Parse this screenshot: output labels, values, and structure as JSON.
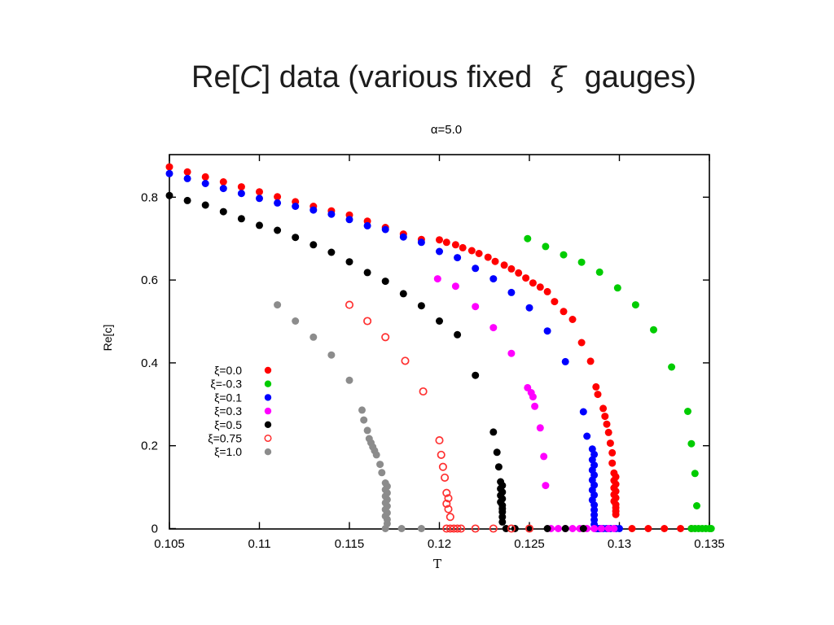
{
  "slide": {
    "title_pre": "Re[",
    "title_var": "C",
    "title_mid": "] data (various fixed ",
    "title_xi": "ξ",
    "title_post": " gauges)"
  },
  "chart_data": {
    "type": "scatter",
    "title": "α=5.0",
    "xlabel": "T",
    "ylabel": "Re[c]",
    "xlim": [
      0.105,
      0.135
    ],
    "ylim": [
      0,
      0.9
    ],
    "grid": false,
    "legend_position": "left-middle",
    "x_tick_values": [
      0.105,
      0.11,
      0.115,
      0.12,
      0.125,
      0.13,
      0.135
    ],
    "x_tick_labels": [
      "0.105",
      "0.11",
      "0.115",
      "0.12",
      "0.125",
      "0.13",
      "0.135"
    ],
    "y_tick_values": [
      0,
      0.2,
      0.4,
      0.6,
      0.8
    ],
    "y_tick_labels": [
      "0",
      "0.2",
      "0.4",
      "0.6",
      "0.8"
    ],
    "series": [
      {
        "name": "ξ=0.0",
        "color": "#ff0000",
        "marker": "filled-circle",
        "points": [
          [
            0.105,
            0.873
          ],
          [
            0.106,
            0.861
          ],
          [
            0.107,
            0.849
          ],
          [
            0.108,
            0.837
          ],
          [
            0.109,
            0.825
          ],
          [
            0.11,
            0.813
          ],
          [
            0.111,
            0.801
          ],
          [
            0.112,
            0.789
          ],
          [
            0.113,
            0.778
          ],
          [
            0.114,
            0.767
          ],
          [
            0.115,
            0.757
          ],
          [
            0.116,
            0.742
          ],
          [
            0.117,
            0.727
          ],
          [
            0.118,
            0.711
          ],
          [
            0.119,
            0.698
          ],
          [
            0.12,
            0.697
          ],
          [
            0.1204,
            0.691
          ],
          [
            0.1209,
            0.685
          ],
          [
            0.1213,
            0.678
          ],
          [
            0.1218,
            0.671
          ],
          [
            0.1222,
            0.664
          ],
          [
            0.1227,
            0.655
          ],
          [
            0.1231,
            0.645
          ],
          [
            0.1236,
            0.636
          ],
          [
            0.124,
            0.627
          ],
          [
            0.1244,
            0.617
          ],
          [
            0.1248,
            0.605
          ],
          [
            0.1252,
            0.593
          ],
          [
            0.1256,
            0.583
          ],
          [
            0.126,
            0.572
          ],
          [
            0.1264,
            0.548
          ],
          [
            0.1269,
            0.524
          ],
          [
            0.1274,
            0.505
          ],
          [
            0.1279,
            0.449
          ],
          [
            0.1284,
            0.404
          ],
          [
            0.1287,
            0.342
          ],
          [
            0.1288,
            0.324
          ],
          [
            0.1291,
            0.29
          ],
          [
            0.1292,
            0.271
          ],
          [
            0.1293,
            0.252
          ],
          [
            0.1294,
            0.232
          ],
          [
            0.1295,
            0.206
          ],
          [
            0.1296,
            0.183
          ],
          [
            0.1296,
            0.158
          ],
          [
            0.1297,
            0.134
          ],
          [
            0.1298,
            0.125
          ],
          [
            0.1297,
            0.116
          ],
          [
            0.1298,
            0.107
          ],
          [
            0.1297,
            0.098
          ],
          [
            0.1298,
            0.09
          ],
          [
            0.1297,
            0.082
          ],
          [
            0.1298,
            0.074
          ],
          [
            0.1297,
            0.066
          ],
          [
            0.1298,
            0.058
          ],
          [
            0.1298,
            0.05
          ],
          [
            0.1298,
            0.042
          ],
          [
            0.1298,
            0.034
          ],
          [
            0.1307,
            0
          ],
          [
            0.1316,
            0
          ],
          [
            0.1325,
            0
          ],
          [
            0.1334,
            0
          ],
          [
            0.134,
            0
          ]
        ]
      },
      {
        "name": "ξ=-0.3",
        "color": "#00cc00",
        "marker": "filled-circle",
        "points": [
          [
            0.1249,
            0.7
          ],
          [
            0.1259,
            0.681
          ],
          [
            0.1269,
            0.661
          ],
          [
            0.1279,
            0.643
          ],
          [
            0.1289,
            0.619
          ],
          [
            0.1299,
            0.581
          ],
          [
            0.1309,
            0.54
          ],
          [
            0.1319,
            0.48
          ],
          [
            0.1329,
            0.39
          ],
          [
            0.1338,
            0.283
          ],
          [
            0.134,
            0.205
          ],
          [
            0.1342,
            0.133
          ],
          [
            0.1343,
            0.055
          ],
          [
            0.134,
            0
          ],
          [
            0.1342,
            0
          ],
          [
            0.1344,
            0
          ],
          [
            0.1346,
            0
          ],
          [
            0.1348,
            0
          ],
          [
            0.135,
            0
          ],
          [
            0.1351,
            0
          ]
        ]
      },
      {
        "name": "ξ=0.1",
        "color": "#0000ff",
        "marker": "filled-circle",
        "points": [
          [
            0.105,
            0.857
          ],
          [
            0.106,
            0.845
          ],
          [
            0.107,
            0.833
          ],
          [
            0.108,
            0.821
          ],
          [
            0.109,
            0.809
          ],
          [
            0.11,
            0.797
          ],
          [
            0.111,
            0.786
          ],
          [
            0.112,
            0.778
          ],
          [
            0.113,
            0.769
          ],
          [
            0.114,
            0.759
          ],
          [
            0.115,
            0.746
          ],
          [
            0.116,
            0.731
          ],
          [
            0.117,
            0.722
          ],
          [
            0.118,
            0.704
          ],
          [
            0.119,
            0.691
          ],
          [
            0.12,
            0.669
          ],
          [
            0.121,
            0.654
          ],
          [
            0.122,
            0.628
          ],
          [
            0.123,
            0.603
          ],
          [
            0.124,
            0.57
          ],
          [
            0.125,
            0.533
          ],
          [
            0.126,
            0.477
          ],
          [
            0.127,
            0.403
          ],
          [
            0.128,
            0.282
          ],
          [
            0.1282,
            0.223
          ],
          [
            0.1285,
            0.192
          ],
          [
            0.1286,
            0.179
          ],
          [
            0.1285,
            0.166
          ],
          [
            0.1286,
            0.153
          ],
          [
            0.1285,
            0.141
          ],
          [
            0.1286,
            0.129
          ],
          [
            0.1285,
            0.117
          ],
          [
            0.1286,
            0.105
          ],
          [
            0.1285,
            0.093
          ],
          [
            0.1286,
            0.081
          ],
          [
            0.1285,
            0.069
          ],
          [
            0.1286,
            0.057
          ],
          [
            0.1286,
            0.045
          ],
          [
            0.1286,
            0.033
          ],
          [
            0.1286,
            0.021
          ],
          [
            0.1286,
            0.01
          ],
          [
            0.1287,
            0
          ],
          [
            0.1288,
            0
          ],
          [
            0.1289,
            0
          ],
          [
            0.129,
            0
          ],
          [
            0.1291,
            0
          ],
          [
            0.1293,
            0
          ],
          [
            0.1295,
            0
          ],
          [
            0.1298,
            0
          ],
          [
            0.13,
            0
          ]
        ]
      },
      {
        "name": "ξ=0.3",
        "color": "#ff00ff",
        "marker": "filled-circle",
        "points": [
          [
            0.1199,
            0.603
          ],
          [
            0.1209,
            0.585
          ],
          [
            0.122,
            0.536
          ],
          [
            0.123,
            0.485
          ],
          [
            0.124,
            0.423
          ],
          [
            0.1249,
            0.34
          ],
          [
            0.1251,
            0.328
          ],
          [
            0.1252,
            0.318
          ],
          [
            0.1253,
            0.295
          ],
          [
            0.1256,
            0.243
          ],
          [
            0.1258,
            0.174
          ],
          [
            0.1259,
            0.104
          ],
          [
            0.1262,
            0
          ],
          [
            0.1266,
            0
          ],
          [
            0.127,
            0
          ],
          [
            0.1274,
            0
          ],
          [
            0.1278,
            0
          ],
          [
            0.1282,
            0
          ],
          [
            0.1286,
            0
          ],
          [
            0.129,
            0
          ],
          [
            0.1294,
            0
          ],
          [
            0.1297,
            0
          ]
        ]
      },
      {
        "name": "ξ=0.5",
        "color": "#000000",
        "marker": "filled-circle",
        "points": [
          [
            0.105,
            0.804
          ],
          [
            0.106,
            0.792
          ],
          [
            0.107,
            0.781
          ],
          [
            0.108,
            0.765
          ],
          [
            0.109,
            0.748
          ],
          [
            0.11,
            0.732
          ],
          [
            0.111,
            0.72
          ],
          [
            0.112,
            0.703
          ],
          [
            0.113,
            0.685
          ],
          [
            0.114,
            0.667
          ],
          [
            0.115,
            0.644
          ],
          [
            0.116,
            0.618
          ],
          [
            0.117,
            0.597
          ],
          [
            0.118,
            0.567
          ],
          [
            0.119,
            0.538
          ],
          [
            0.12,
            0.501
          ],
          [
            0.121,
            0.468
          ],
          [
            0.122,
            0.37
          ],
          [
            0.123,
            0.233
          ],
          [
            0.1232,
            0.184
          ],
          [
            0.1233,
            0.149
          ],
          [
            0.1234,
            0.113
          ],
          [
            0.1235,
            0.104
          ],
          [
            0.1234,
            0.096
          ],
          [
            0.1235,
            0.088
          ],
          [
            0.1234,
            0.08
          ],
          [
            0.1235,
            0.072
          ],
          [
            0.1234,
            0.064
          ],
          [
            0.1235,
            0.056
          ],
          [
            0.1235,
            0.048
          ],
          [
            0.1235,
            0.04
          ],
          [
            0.1235,
            0.028
          ],
          [
            0.1235,
            0.016
          ],
          [
            0.1237,
            0
          ],
          [
            0.1242,
            0
          ],
          [
            0.125,
            0
          ],
          [
            0.126,
            0
          ],
          [
            0.127,
            0
          ],
          [
            0.128,
            0
          ]
        ]
      },
      {
        "name": "ξ=0.75",
        "color": "#ff3030",
        "marker": "open-circle",
        "points": [
          [
            0.115,
            0.54
          ],
          [
            0.116,
            0.501
          ],
          [
            0.117,
            0.462
          ],
          [
            0.1181,
            0.405
          ],
          [
            0.1191,
            0.331
          ],
          [
            0.12,
            0.213
          ],
          [
            0.1201,
            0.178
          ],
          [
            0.1202,
            0.149
          ],
          [
            0.1203,
            0.123
          ],
          [
            0.1204,
            0.086
          ],
          [
            0.1205,
            0.073
          ],
          [
            0.1204,
            0.06
          ],
          [
            0.1205,
            0.047
          ],
          [
            0.1206,
            0.028
          ],
          [
            0.1204,
            0
          ],
          [
            0.1206,
            0
          ],
          [
            0.1208,
            0
          ],
          [
            0.121,
            0
          ],
          [
            0.1212,
            0
          ],
          [
            0.122,
            0
          ],
          [
            0.123,
            0
          ],
          [
            0.124,
            0
          ],
          [
            0.125,
            0
          ]
        ]
      },
      {
        "name": "ξ=1.0",
        "color": "#8c8c8c",
        "marker": "filled-circle",
        "points": [
          [
            0.111,
            0.54
          ],
          [
            0.112,
            0.501
          ],
          [
            0.113,
            0.462
          ],
          [
            0.114,
            0.419
          ],
          [
            0.115,
            0.358
          ],
          [
            0.1157,
            0.286
          ],
          [
            0.1158,
            0.262
          ],
          [
            0.116,
            0.237
          ],
          [
            0.1161,
            0.217
          ],
          [
            0.1162,
            0.207
          ],
          [
            0.1163,
            0.197
          ],
          [
            0.1164,
            0.188
          ],
          [
            0.1165,
            0.178
          ],
          [
            0.1167,
            0.155
          ],
          [
            0.1168,
            0.135
          ],
          [
            0.117,
            0.11
          ],
          [
            0.1171,
            0.102
          ],
          [
            0.117,
            0.094
          ],
          [
            0.1171,
            0.086
          ],
          [
            0.117,
            0.078
          ],
          [
            0.1171,
            0.07
          ],
          [
            0.117,
            0.062
          ],
          [
            0.1171,
            0.054
          ],
          [
            0.117,
            0.046
          ],
          [
            0.1171,
            0.038
          ],
          [
            0.117,
            0.03
          ],
          [
            0.1171,
            0.022
          ],
          [
            0.1171,
            0.012
          ],
          [
            0.117,
            0
          ],
          [
            0.1179,
            0
          ],
          [
            0.119,
            0
          ]
        ]
      }
    ]
  }
}
